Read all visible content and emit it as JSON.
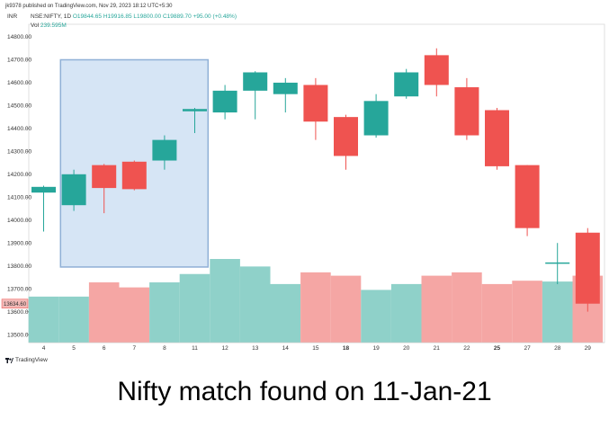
{
  "publish_line": "jk9378 published on TradingView.com, Nov 29, 2023 18:12 UTC+5:30",
  "legend": {
    "symbol": "NSE:NIFTY, 1D",
    "ohlc": "O19844.65 H19916.85 L19800.00 C19889.70 +95.00 (+0.48%)",
    "vol_label": "Vol",
    "vol_value": "239.595M"
  },
  "currency_label": "INR",
  "last_price_label": "13634.60",
  "brand": "TradingView",
  "caption": "Nifty match found on 11-Jan-21",
  "colors": {
    "up": "#26a69a",
    "down": "#ef5350",
    "vol_up": "#8fd1c9",
    "vol_down": "#f5a6a4",
    "highlight_fill": "#cfe0f3",
    "highlight_stroke": "#8fb0d6"
  },
  "chart_data": {
    "type": "candlestick",
    "y_ticks": [
      13500,
      13600,
      13700,
      13800,
      13900,
      14000,
      14100,
      14200,
      14300,
      14400,
      14500,
      14600,
      14700,
      14800
    ],
    "y_tick_labels": [
      "13500.00",
      "13600.00",
      "13700.00",
      "13800.00",
      "13900.00",
      "14000.00",
      "14100.00",
      "14200.00",
      "14300.00",
      "14400.00",
      "14500.00",
      "14600.00",
      "14700.00",
      "14800.00"
    ],
    "ylim": [
      13465,
      14855
    ],
    "x_labels": [
      "4",
      "5",
      "6",
      "7",
      "8",
      "11",
      "12",
      "13",
      "14",
      "15",
      "18",
      "19",
      "20",
      "21",
      "22",
      "25",
      "27",
      "28",
      "29"
    ],
    "bold_labels": [
      "18",
      "25"
    ],
    "candles": [
      {
        "o": 14120,
        "h": 14150,
        "l": 13950,
        "c": 14145
      },
      {
        "o": 14065,
        "h": 14220,
        "l": 14040,
        "c": 14200
      },
      {
        "o": 14240,
        "h": 14245,
        "l": 14030,
        "c": 14140
      },
      {
        "o": 14255,
        "h": 14260,
        "l": 14130,
        "c": 14135
      },
      {
        "o": 14260,
        "h": 14370,
        "l": 14220,
        "c": 14350
      },
      {
        "o": 14475,
        "h": 14490,
        "l": 14380,
        "c": 14485
      },
      {
        "o": 14470,
        "h": 14590,
        "l": 14440,
        "c": 14565
      },
      {
        "o": 14565,
        "h": 14650,
        "l": 14440,
        "c": 14645
      },
      {
        "o": 14550,
        "h": 14620,
        "l": 14470,
        "c": 14600
      },
      {
        "o": 14590,
        "h": 14620,
        "l": 14350,
        "c": 14430
      },
      {
        "o": 14450,
        "h": 14460,
        "l": 14220,
        "c": 14280
      },
      {
        "o": 14370,
        "h": 14550,
        "l": 14360,
        "c": 14520
      },
      {
        "o": 14540,
        "h": 14660,
        "l": 14530,
        "c": 14645
      },
      {
        "o": 14720,
        "h": 14750,
        "l": 14540,
        "c": 14590
      },
      {
        "o": 14580,
        "h": 14620,
        "l": 14350,
        "c": 14370
      },
      {
        "o": 14480,
        "h": 14490,
        "l": 14220,
        "c": 14235
      },
      {
        "o": 14240,
        "h": 14240,
        "l": 13930,
        "c": 13965
      },
      {
        "o": 13810,
        "h": 13900,
        "l": 13720,
        "c": 13815
      },
      {
        "o": 13945,
        "h": 13965,
        "l": 13600,
        "c": 13635
      }
    ],
    "volume_relative": [
      0.55,
      0.55,
      0.72,
      0.66,
      0.72,
      0.82,
      1.0,
      0.91,
      0.7,
      0.84,
      0.8,
      0.63,
      0.7,
      0.8,
      0.84,
      0.7,
      0.74,
      0.73,
      0.8
    ],
    "highlight": {
      "from_label": "5",
      "to_label": "11",
      "y_low": 13795,
      "y_high": 14700
    }
  }
}
